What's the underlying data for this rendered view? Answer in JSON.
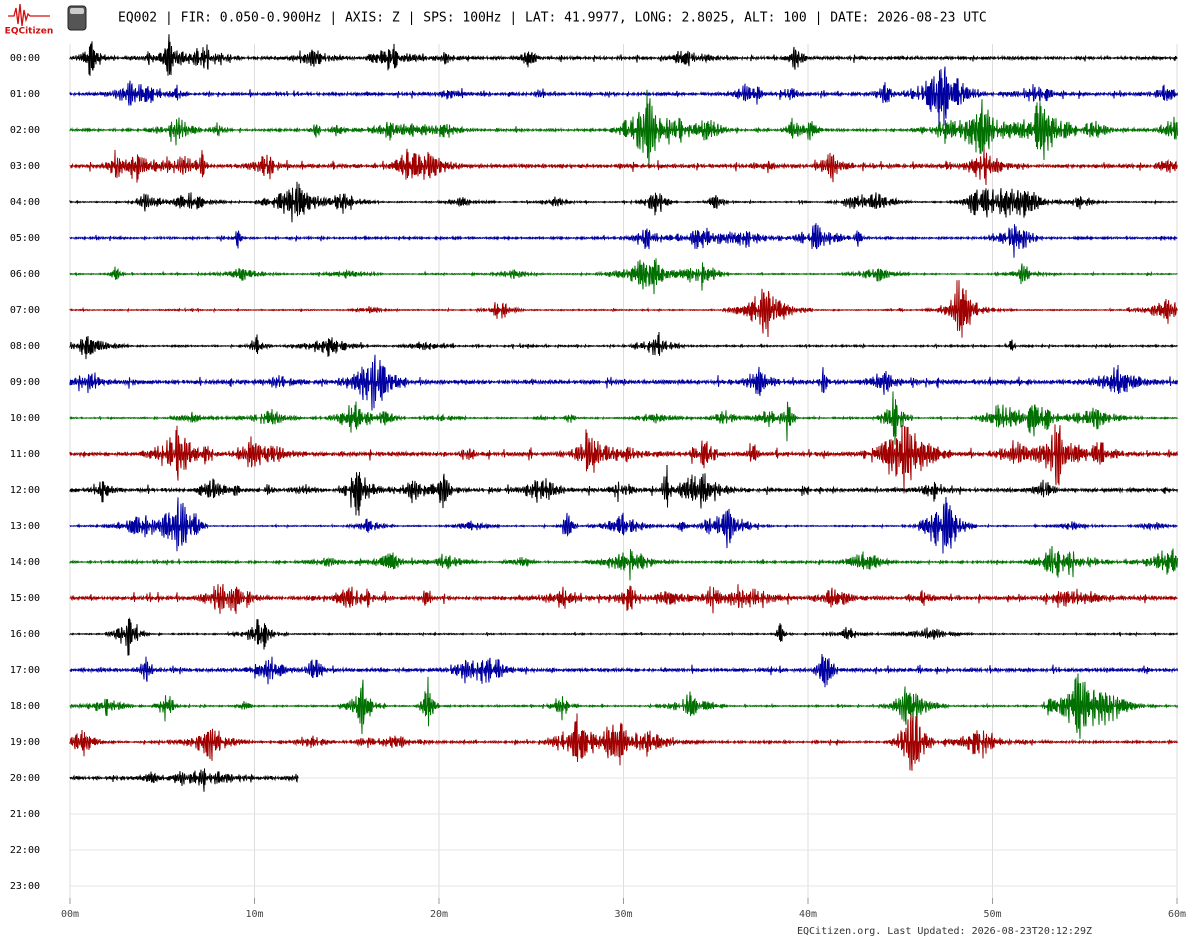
{
  "chart_data": {
    "type": "helicorder",
    "title": "EQ002 | FIR: 0.050-0.900Hz | AXIS: Z | SPS: 100Hz | LAT: 41.9977, LONG: 2.8025, ALT: 100 | DATE: 2026-08-23 UTC",
    "logo": "EQCitizen",
    "footer": "EQCitizen.org. Last Updated: 2026-08-23T20:12:29Z",
    "categories": [
      "00:00",
      "01:00",
      "02:00",
      "03:00",
      "04:00",
      "05:00",
      "06:00",
      "07:00",
      "08:00",
      "09:00",
      "10:00",
      "11:00",
      "12:00",
      "13:00",
      "14:00",
      "15:00",
      "16:00",
      "17:00",
      "18:00",
      "19:00",
      "20:00",
      "21:00",
      "22:00",
      "23:00"
    ],
    "colors": [
      "#000000",
      "#0000a0",
      "#007000",
      "#a00000"
    ],
    "xlim": [
      0,
      60
    ],
    "xticks": [
      {
        "value": 0,
        "label": "00m"
      },
      {
        "value": 10,
        "label": "10m"
      },
      {
        "value": 20,
        "label": "20m"
      },
      {
        "value": 30,
        "label": "30m"
      },
      {
        "value": 40,
        "label": "40m"
      },
      {
        "value": 50,
        "label": "50m"
      },
      {
        "value": 60,
        "label": "60m"
      }
    ],
    "last_minute": 12.4,
    "grid": true
  }
}
